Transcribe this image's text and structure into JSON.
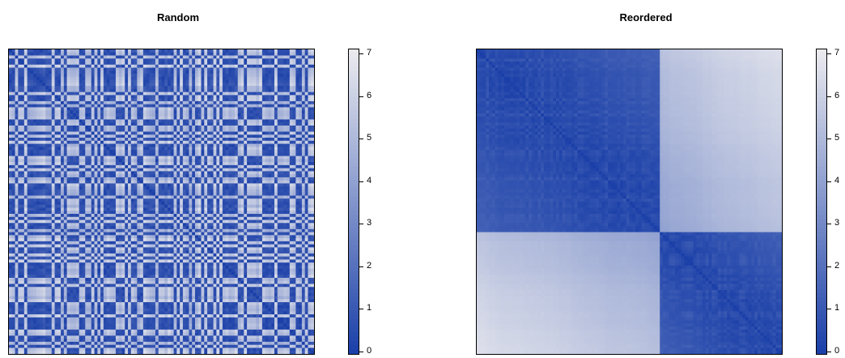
{
  "chart_data": [
    {
      "type": "heatmap",
      "title": "Random",
      "colorbar": {
        "min": 0,
        "max": 7,
        "ticks": [
          "0",
          "1",
          "2",
          "3",
          "4",
          "5",
          "6",
          "7"
        ]
      },
      "colors": {
        "low": "#1a3fa8",
        "high": "#ebebef"
      },
      "n": 100,
      "order": "random",
      "grid": false
    },
    {
      "type": "heatmap",
      "title": "Reordered",
      "colorbar": {
        "min": 0,
        "max": 7,
        "ticks": [
          "0",
          "1",
          "2",
          "3",
          "4",
          "5",
          "6",
          "7"
        ]
      },
      "colors": {
        "low": "#1a3fa8",
        "high": "#ebebef"
      },
      "n": 100,
      "order": "clustered",
      "grid": false
    }
  ]
}
